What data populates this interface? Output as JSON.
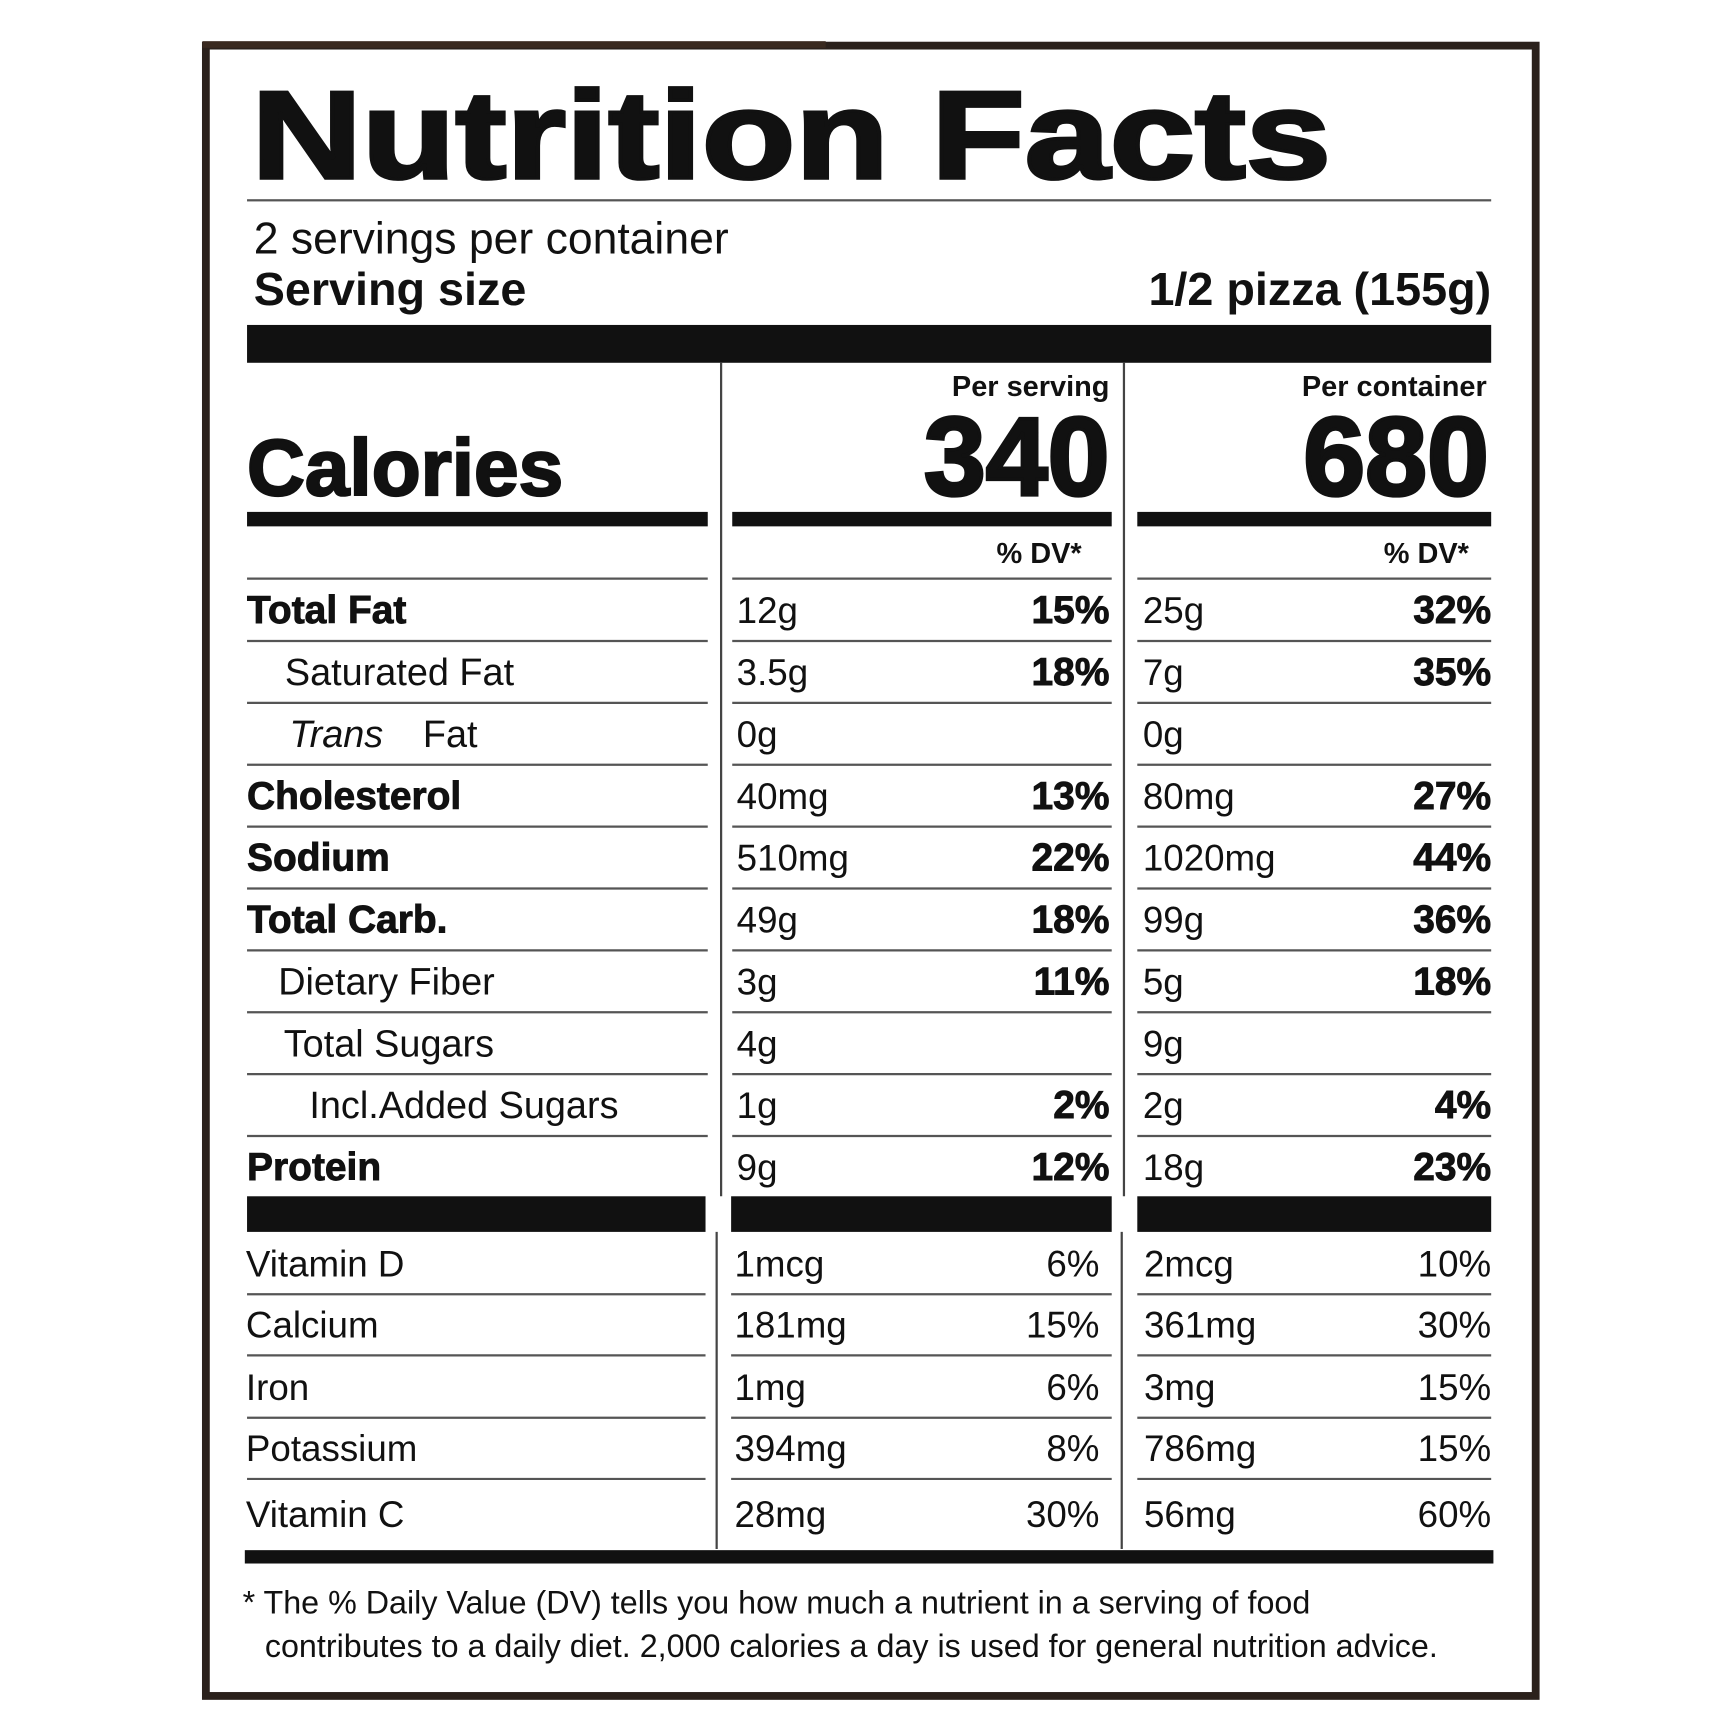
{
  "title": "Nutrition Facts",
  "servings": "2 servings per container",
  "serving_size": {
    "label": "Serving size",
    "value": "1/2 pizza (155g)"
  },
  "calories": {
    "label": "Calories",
    "columns": [
      {
        "header": "Per serving",
        "value": "340"
      },
      {
        "header": "Per container",
        "value": "680"
      }
    ]
  },
  "dv_headers": [
    "% DV*",
    "% DV*"
  ],
  "nutrients": [
    {
      "name": "Total Fat",
      "bold": true,
      "serving": [
        "12g",
        "15%"
      ],
      "container": [
        "25g",
        "32%"
      ]
    },
    {
      "name": "Saturated Fat",
      "bold": false,
      "serving": [
        "3.5g",
        "18%"
      ],
      "container": [
        "7g",
        "35%"
      ]
    },
    {
      "name_italic": "Trans",
      "name": "Fat",
      "bold": false,
      "serving": [
        "0g",
        null
      ],
      "container": [
        "0g",
        null
      ]
    },
    {
      "name": "Cholesterol",
      "bold": true,
      "serving": [
        "40mg",
        "13%"
      ],
      "container": [
        "80mg",
        "27%"
      ]
    },
    {
      "name": "Sodium",
      "bold": true,
      "serving": [
        "510mg",
        "22%"
      ],
      "container": [
        "1020mg",
        "44%"
      ]
    },
    {
      "name": "Total Carb.",
      "bold": true,
      "serving": [
        "49g",
        "18%"
      ],
      "container": [
        "99g",
        "36%"
      ]
    },
    {
      "name": "Dietary Fiber",
      "bold": false,
      "serving": [
        "3g",
        "11%"
      ],
      "container": [
        "5g",
        "18%"
      ]
    },
    {
      "name": "Total Sugars",
      "bold": false,
      "serving": [
        "4g",
        null
      ],
      "container": [
        "9g",
        null
      ]
    },
    {
      "name": "Incl.Added Sugars",
      "bold": false,
      "serving": [
        "1g",
        "2%"
      ],
      "container": [
        "2g",
        "4%"
      ]
    },
    {
      "name": "Protein",
      "bold": true,
      "serving": [
        "9g",
        "12%"
      ],
      "container": [
        "18g",
        "23%"
      ]
    }
  ],
  "vitamins": [
    {
      "name": "Vitamin D",
      "serving": [
        "1mcg",
        "6%"
      ],
      "container": [
        "2mcg",
        "10%"
      ]
    },
    {
      "name": "Calcium",
      "serving": [
        "181mg",
        "15%"
      ],
      "container": [
        "361mg",
        "30%"
      ]
    },
    {
      "name": "Iron",
      "serving": [
        "1mg",
        "6%"
      ],
      "container": [
        "3mg",
        "15%"
      ]
    },
    {
      "name": "Potassium",
      "serving": [
        "394mg",
        "8%"
      ],
      "container": [
        "786mg",
        "15%"
      ]
    },
    {
      "name": "Vitamin C",
      "serving": [
        "28mg",
        "30%"
      ],
      "container": [
        "56mg",
        "60%"
      ]
    }
  ],
  "footnote": [
    "* The % Daily Value (DV) tells you how much a nutrient in a serving of food",
    "contributes to a daily diet. 2,000 calories a day is used for general nutrition advice."
  ]
}
